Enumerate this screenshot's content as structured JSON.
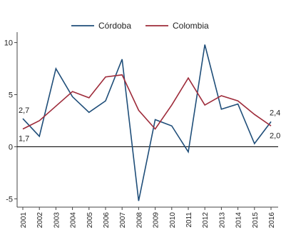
{
  "chart_data": {
    "type": "line",
    "categories": [
      "2001",
      "2002",
      "2003",
      "2004",
      "2005",
      "2006",
      "2007",
      "2008",
      "2009",
      "2010",
      "2011",
      "2012",
      "2013",
      "2014",
      "2015",
      "2016"
    ],
    "series": [
      {
        "name": "Córdoba",
        "color": "#1f4e79",
        "values": [
          2.7,
          1.0,
          7.5,
          4.8,
          3.3,
          4.4,
          8.4,
          -5.2,
          2.6,
          2.0,
          -0.5,
          9.8,
          3.6,
          4.1,
          0.3,
          2.4
        ]
      },
      {
        "name": "Colombia",
        "color": "#9e2b3a",
        "values": [
          1.7,
          2.5,
          3.9,
          5.3,
          4.7,
          6.7,
          6.9,
          3.5,
          1.7,
          4.0,
          6.6,
          4.0,
          4.9,
          4.4,
          3.1,
          2.0
        ]
      }
    ],
    "ylim": [
      -5.8,
      11
    ],
    "yticks": [
      10,
      5,
      0,
      -5
    ],
    "ytick_labels": [
      "10",
      "5",
      "0",
      "-5"
    ],
    "annotations": [
      {
        "text": "2,7",
        "series": 0,
        "index": 0
      },
      {
        "text": "1,7",
        "series": 1,
        "index": 0
      },
      {
        "text": "2,4",
        "series": 0,
        "index": 15
      },
      {
        "text": "2,0",
        "series": 1,
        "index": 15
      }
    ],
    "legend": "top",
    "grid": false,
    "zero_line": true
  }
}
